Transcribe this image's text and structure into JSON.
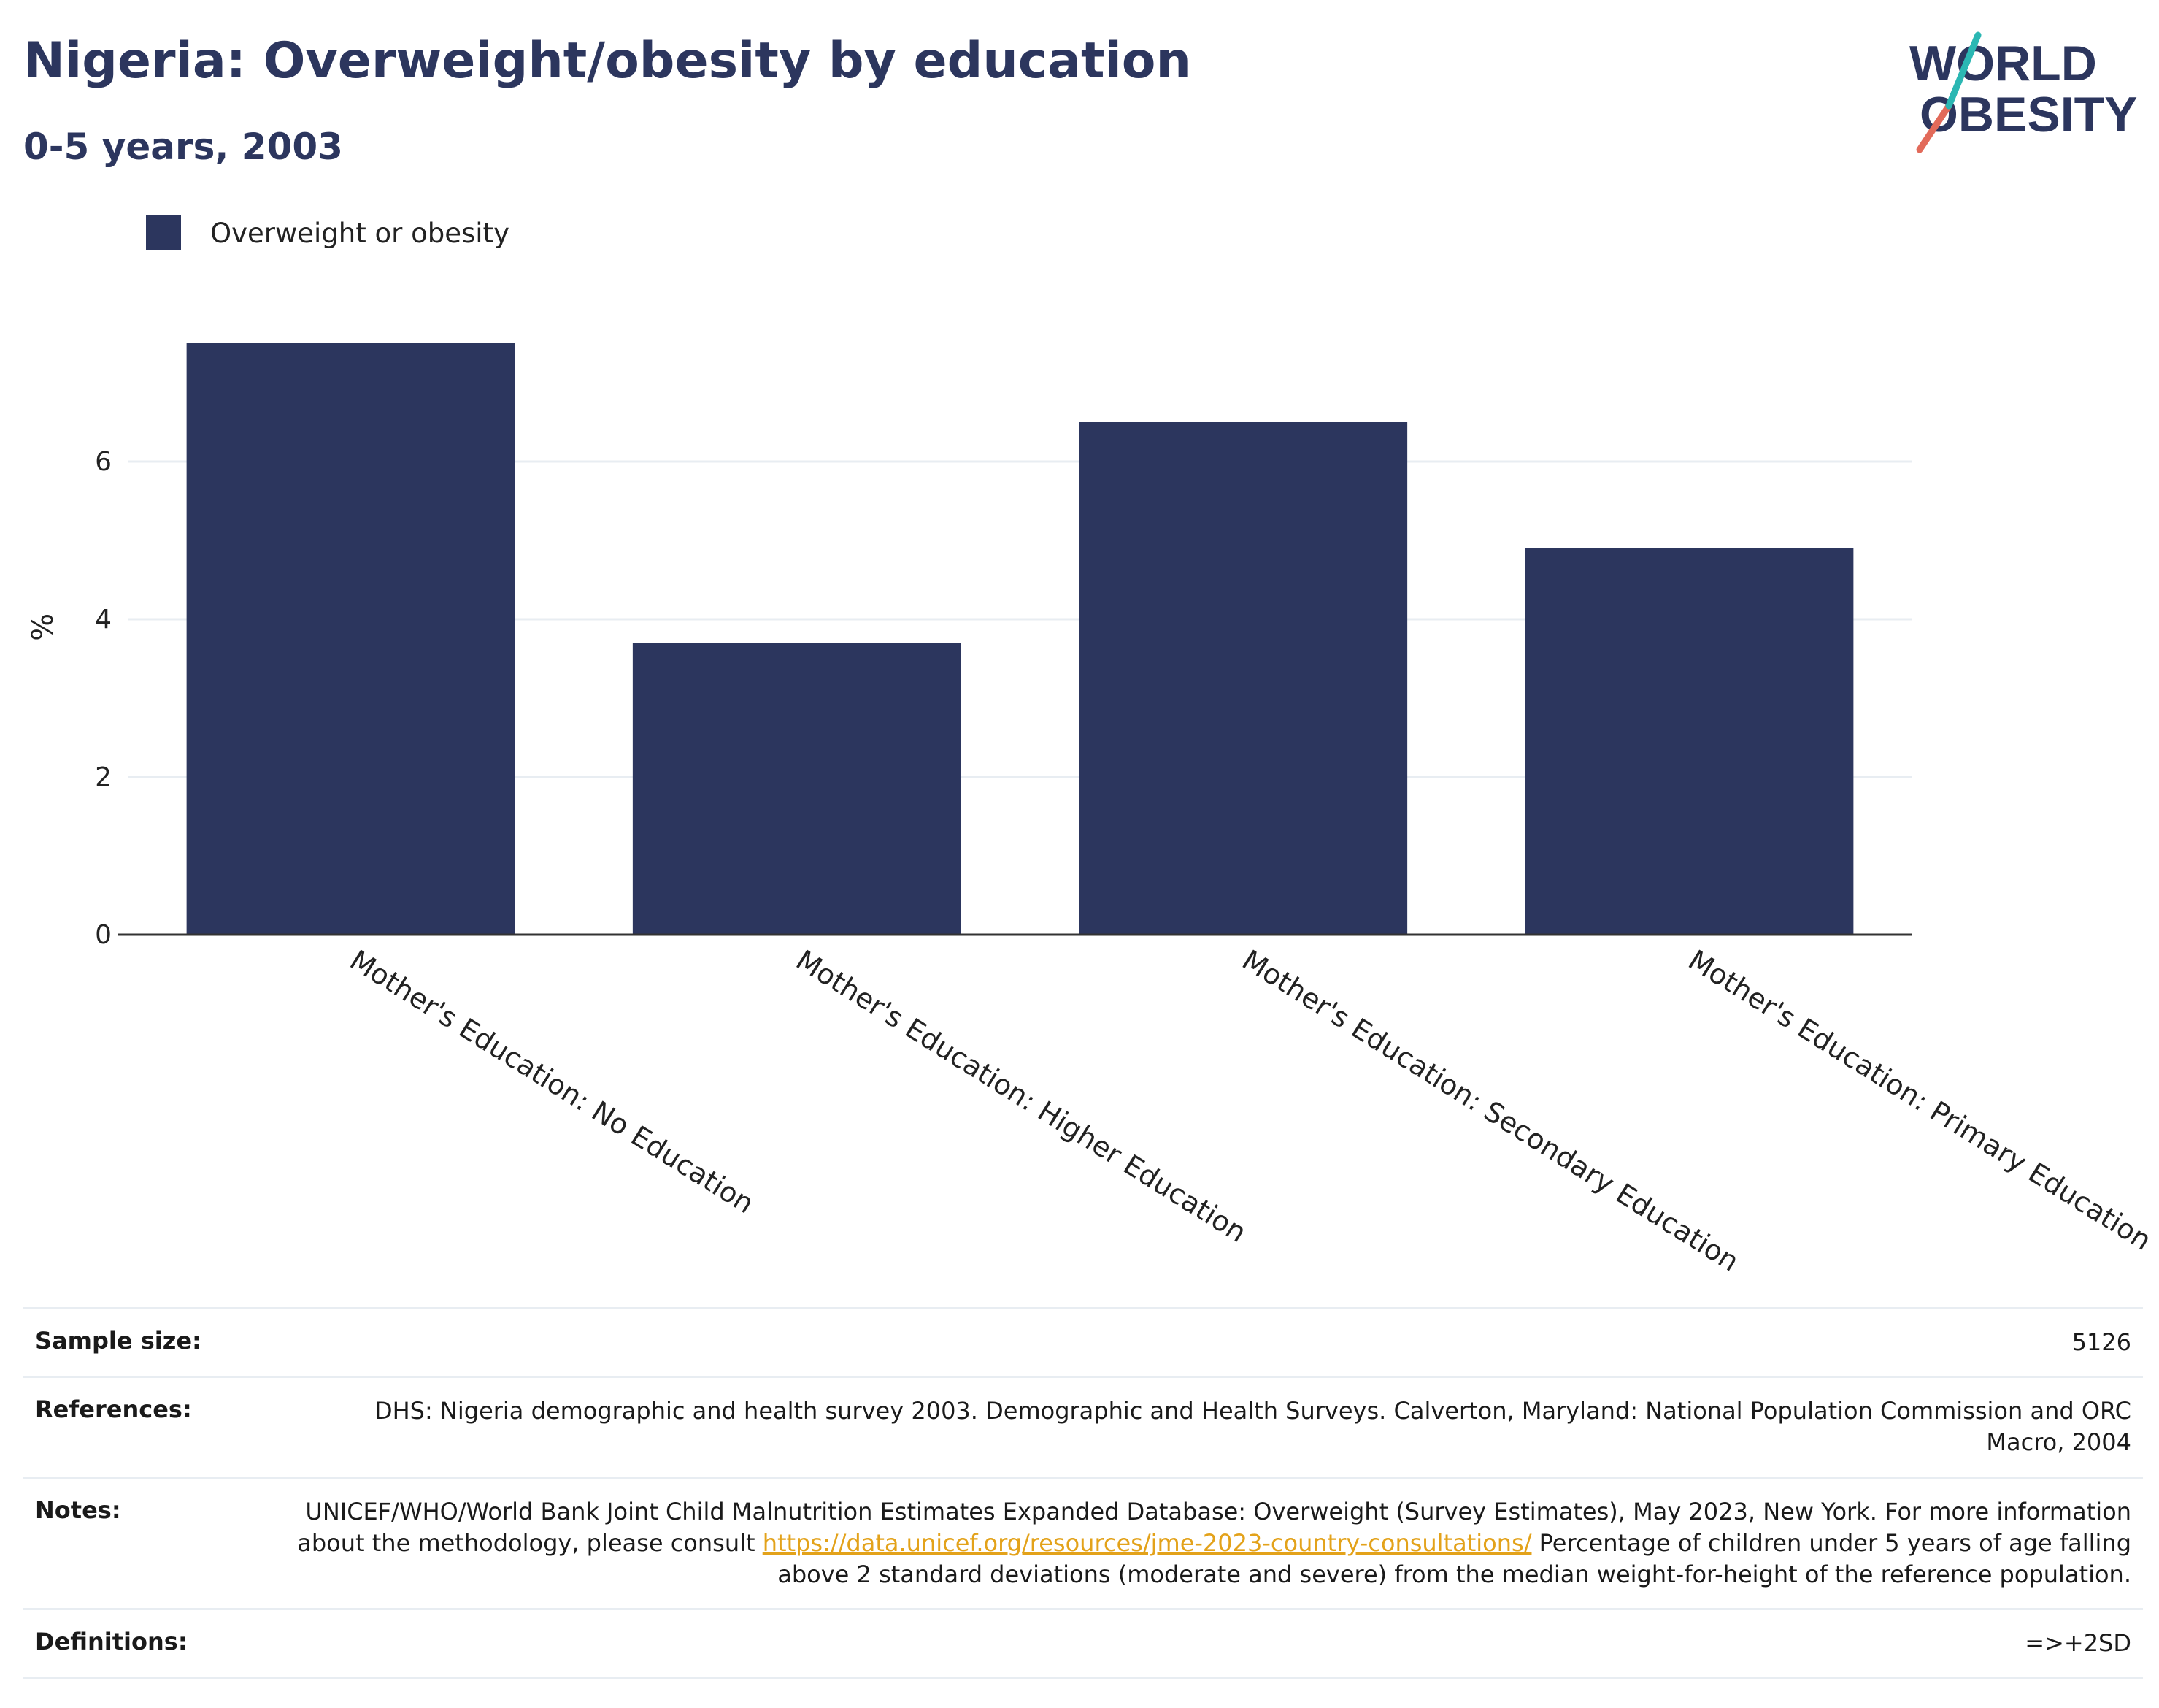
{
  "header": {
    "title": "Nigeria: Overweight/obesity by education",
    "subtitle": "0-5 years, 2003"
  },
  "logo": {
    "line1": "WORLD",
    "line2": "OBESITY"
  },
  "colors": {
    "bar": "#2c365e",
    "grid": "#e8edf2",
    "axis": "#333333",
    "link": "#e3a21a"
  },
  "chart_data": {
    "type": "bar",
    "categories": [
      "Mother's Education: No Education",
      "Mother's Education: Higher Education",
      "Mother's Education: Secondary Education",
      "Mother's Education: Primary Education"
    ],
    "series": [
      {
        "name": "Overweight or obesity",
        "values": [
          7.5,
          3.7,
          6.5,
          4.9
        ]
      }
    ],
    "ylabel": "%",
    "yticks": [
      0,
      2,
      4,
      6
    ],
    "ylim": [
      0,
      7.5
    ],
    "grid": true,
    "legend": "top-left"
  },
  "footer": {
    "sample_size_label": "Sample size:",
    "sample_size_value": "5126",
    "references_label": "References:",
    "references_value": "DHS: Nigeria demographic and health survey 2003. Demographic and Health Surveys. Calverton, Maryland: National Population Commission and ORC Macro, 2004",
    "notes_label": "Notes:",
    "notes_text_before": "UNICEF/WHO/World Bank Joint Child Malnutrition Estimates Expanded Database: Overweight (Survey Estimates), May 2023, New York. For more information about the methodology, please consult ",
    "notes_link": "https://data.unicef.org/resources/jme-2023-country-consultations/",
    "notes_text_after": " Percentage of children under 5 years of age falling above 2 standard deviations (moderate and severe) from the median weight-for-height of the reference population.",
    "definitions_label": "Definitions:",
    "definitions_value": "=>+2SD"
  }
}
